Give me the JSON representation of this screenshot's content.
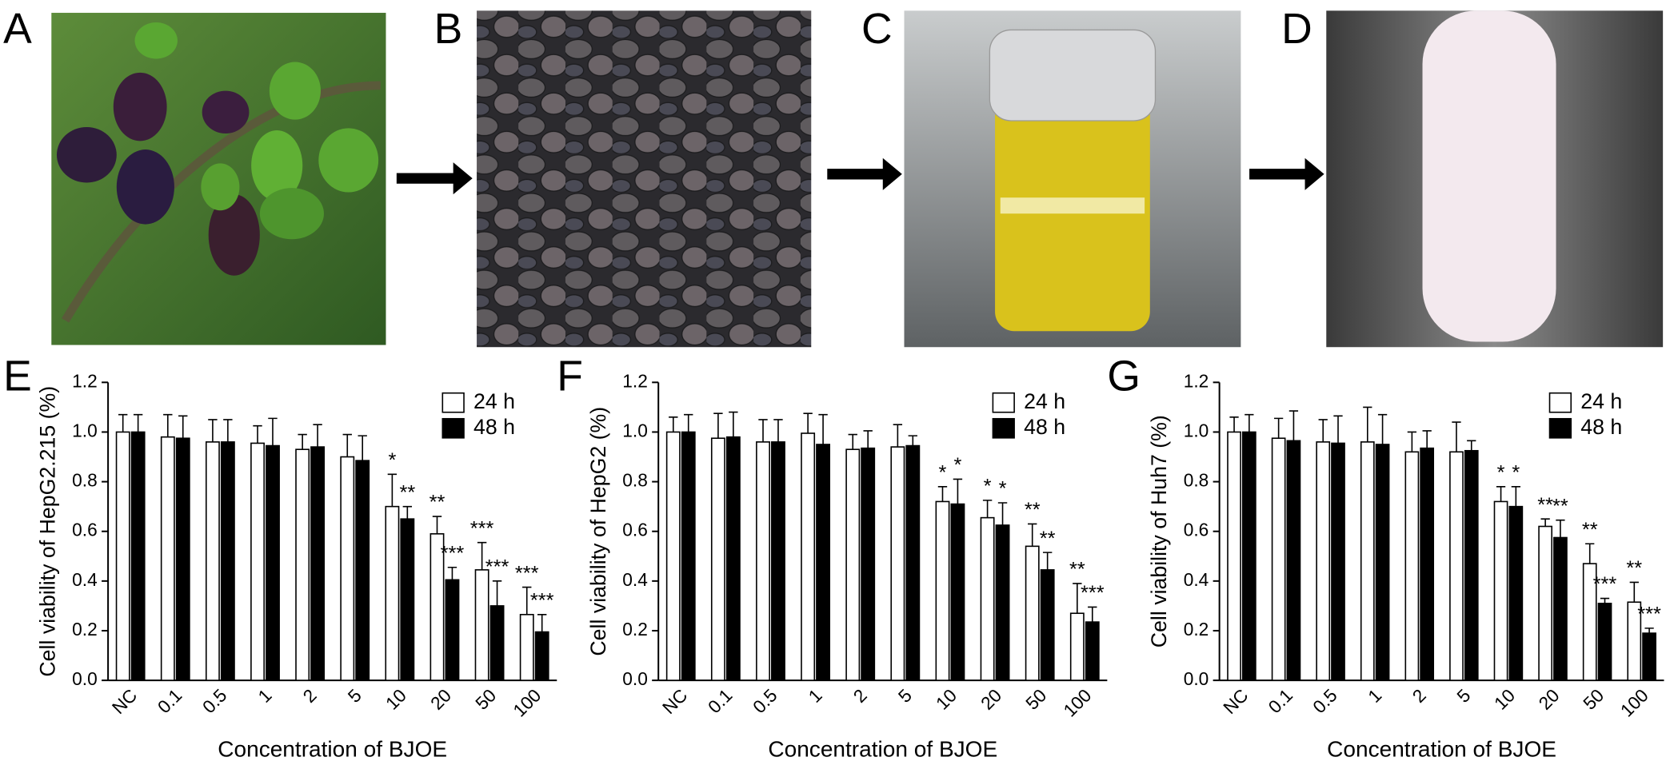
{
  "photo_panels": [
    {
      "label": "A"
    },
    {
      "label": "B"
    },
    {
      "label": "C"
    },
    {
      "label": "D"
    }
  ],
  "chart_data": [
    {
      "type": "bar",
      "panel_label": "E",
      "ylabel": "Cell viability of HepG2.215 (%)",
      "xlabel": "Concentration of BJOE",
      "categories": [
        "NC",
        "0.1",
        "0.5",
        "1",
        "2",
        "5",
        "10",
        "20",
        "50",
        "100"
      ],
      "ylim": [
        0,
        1.2
      ],
      "yticks": [
        {
          "value": 0,
          "label": "0.0"
        },
        0.2,
        0.4,
        0.6,
        0.8,
        {
          "value": 1,
          "label": "1.0"
        },
        1.2
      ],
      "series": [
        {
          "name": "24 h",
          "color": "#ffffff",
          "values": [
            1.0,
            0.98,
            0.96,
            0.955,
            0.93,
            0.9,
            0.7,
            0.59,
            0.445,
            0.265
          ],
          "errors": [
            0.07,
            0.09,
            0.09,
            0.07,
            0.06,
            0.09,
            0.13,
            0.07,
            0.11,
            0.11
          ],
          "annotations": [
            null,
            null,
            null,
            null,
            null,
            null,
            "*",
            "**",
            "***",
            "***"
          ]
        },
        {
          "name": "48 h",
          "color": "#000000",
          "values": [
            1.0,
            0.975,
            0.96,
            0.945,
            0.94,
            0.885,
            0.65,
            0.405,
            0.3,
            0.195
          ],
          "errors": [
            0.07,
            0.09,
            0.09,
            0.11,
            0.09,
            0.1,
            0.05,
            0.05,
            0.1,
            0.07
          ],
          "annotations": [
            null,
            null,
            null,
            null,
            null,
            null,
            "**",
            "***",
            "***",
            "***"
          ]
        }
      ]
    },
    {
      "type": "bar",
      "panel_label": "F",
      "ylabel": "Cell viability of HepG2 (%)",
      "xlabel": "Concentration of BJOE",
      "categories": [
        "NC",
        "0.1",
        "0.5",
        "1",
        "2",
        "5",
        "10",
        "20",
        "50",
        "100"
      ],
      "ylim": [
        0,
        1.2
      ],
      "yticks": [
        {
          "value": 0,
          "label": "0.0"
        },
        0.2,
        0.4,
        0.6,
        0.8,
        {
          "value": 1,
          "label": "1.0"
        },
        1.2
      ],
      "series": [
        {
          "name": "24 h",
          "color": "#ffffff",
          "values": [
            1.0,
            0.975,
            0.96,
            0.995,
            0.93,
            0.94,
            0.72,
            0.655,
            0.54,
            0.27
          ],
          "errors": [
            0.06,
            0.1,
            0.09,
            0.08,
            0.06,
            0.09,
            0.06,
            0.07,
            0.09,
            0.12
          ],
          "annotations": [
            null,
            null,
            null,
            null,
            null,
            null,
            "*",
            "*",
            "**",
            "**"
          ]
        },
        {
          "name": "48 h",
          "color": "#000000",
          "values": [
            1.0,
            0.98,
            0.96,
            0.95,
            0.935,
            0.945,
            0.71,
            0.625,
            0.445,
            0.235
          ],
          "errors": [
            0.07,
            0.1,
            0.09,
            0.12,
            0.07,
            0.04,
            0.1,
            0.09,
            0.07,
            0.06
          ],
          "annotations": [
            null,
            null,
            null,
            null,
            null,
            null,
            "*",
            "*",
            "**",
            "***"
          ]
        }
      ]
    },
    {
      "type": "bar",
      "panel_label": "G",
      "ylabel": "Cell viability of Huh7 (%)",
      "xlabel": "Concentration of BJOE",
      "categories": [
        "NC",
        "0.1",
        "0.5",
        "1",
        "2",
        "5",
        "10",
        "20",
        "50",
        "100"
      ],
      "ylim": [
        0,
        1.2
      ],
      "yticks": [
        {
          "value": 0,
          "label": "0.0"
        },
        0.2,
        0.4,
        0.6,
        0.8,
        {
          "value": 1,
          "label": "1.0"
        },
        1.2
      ],
      "series": [
        {
          "name": "24 h",
          "color": "#ffffff",
          "values": [
            1.0,
            0.975,
            0.96,
            0.96,
            0.92,
            0.92,
            0.72,
            0.62,
            0.47,
            0.315
          ],
          "errors": [
            0.06,
            0.08,
            0.09,
            0.14,
            0.08,
            0.12,
            0.06,
            0.03,
            0.08,
            0.08
          ],
          "annotations": [
            null,
            null,
            null,
            null,
            null,
            null,
            "*",
            "**",
            "**",
            "**"
          ]
        },
        {
          "name": "48 h",
          "color": "#000000",
          "values": [
            1.0,
            0.965,
            0.955,
            0.95,
            0.935,
            0.925,
            0.7,
            0.575,
            0.31,
            0.19
          ],
          "errors": [
            0.07,
            0.12,
            0.11,
            0.12,
            0.07,
            0.04,
            0.08,
            0.07,
            0.02,
            0.02
          ],
          "annotations": [
            null,
            null,
            null,
            null,
            null,
            null,
            "*",
            "**",
            "***",
            "***"
          ]
        }
      ]
    }
  ]
}
